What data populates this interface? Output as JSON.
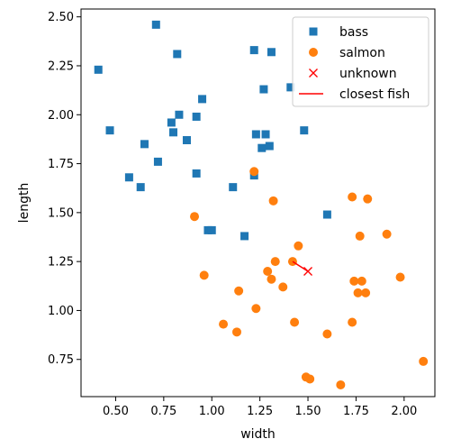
{
  "chart_data": {
    "type": "scatter",
    "xlabel": "width",
    "ylabel": "length",
    "xlim": [
      0.32,
      2.16
    ],
    "ylim": [
      0.56,
      2.54
    ],
    "x_ticks": [
      {
        "value": 0.5,
        "label": "0.50"
      },
      {
        "value": 0.75,
        "label": "0.75"
      },
      {
        "value": 1.0,
        "label": "1.00"
      },
      {
        "value": 1.25,
        "label": "1.25"
      },
      {
        "value": 1.5,
        "label": "1.50"
      },
      {
        "value": 1.75,
        "label": "1.75"
      },
      {
        "value": 2.0,
        "label": "2.00"
      }
    ],
    "y_ticks": [
      {
        "value": 0.75,
        "label": "0.75"
      },
      {
        "value": 1.0,
        "label": "1.00"
      },
      {
        "value": 1.25,
        "label": "1.25"
      },
      {
        "value": 1.5,
        "label": "1.50"
      },
      {
        "value": 1.75,
        "label": "1.75"
      },
      {
        "value": 2.0,
        "label": "2.00"
      },
      {
        "value": 2.25,
        "label": "2.25"
      },
      {
        "value": 2.5,
        "label": "2.50"
      }
    ],
    "grid": false,
    "legend_position": "top-right",
    "series": [
      {
        "name": "bass",
        "marker": "square",
        "color": "#1f77b4",
        "points": [
          [
            0.41,
            2.23
          ],
          [
            0.71,
            2.46
          ],
          [
            0.82,
            2.31
          ],
          [
            1.22,
            2.33
          ],
          [
            1.31,
            2.32
          ],
          [
            1.27,
            2.13
          ],
          [
            1.41,
            2.14
          ],
          [
            0.47,
            1.92
          ],
          [
            0.79,
            1.96
          ],
          [
            0.83,
            2.0
          ],
          [
            0.8,
            1.91
          ],
          [
            0.92,
            1.99
          ],
          [
            0.95,
            2.08
          ],
          [
            0.65,
            1.85
          ],
          [
            0.87,
            1.87
          ],
          [
            1.23,
            1.9
          ],
          [
            1.28,
            1.9
          ],
          [
            1.26,
            1.83
          ],
          [
            1.3,
            1.84
          ],
          [
            1.48,
            1.92
          ],
          [
            0.72,
            1.76
          ],
          [
            0.57,
            1.68
          ],
          [
            0.63,
            1.63
          ],
          [
            0.92,
            1.7
          ],
          [
            1.11,
            1.63
          ],
          [
            1.22,
            1.69
          ],
          [
            0.98,
            1.41
          ],
          [
            1.0,
            1.41
          ],
          [
            1.17,
            1.38
          ],
          [
            1.6,
            1.49
          ]
        ]
      },
      {
        "name": "salmon",
        "marker": "circle",
        "color": "#ff7f0e",
        "points": [
          [
            1.22,
            1.71
          ],
          [
            1.32,
            1.56
          ],
          [
            0.91,
            1.48
          ],
          [
            1.73,
            1.58
          ],
          [
            1.81,
            1.57
          ],
          [
            1.45,
            1.33
          ],
          [
            1.77,
            1.38
          ],
          [
            1.91,
            1.39
          ],
          [
            0.96,
            1.18
          ],
          [
            1.42,
            1.25
          ],
          [
            1.33,
            1.25
          ],
          [
            1.29,
            1.2
          ],
          [
            1.31,
            1.16
          ],
          [
            1.37,
            1.12
          ],
          [
            1.14,
            1.1
          ],
          [
            1.74,
            1.15
          ],
          [
            1.78,
            1.15
          ],
          [
            1.98,
            1.17
          ],
          [
            1.76,
            1.09
          ],
          [
            1.8,
            1.09
          ],
          [
            1.23,
            1.01
          ],
          [
            1.06,
            0.93
          ],
          [
            1.13,
            0.89
          ],
          [
            1.43,
            0.94
          ],
          [
            1.73,
            0.94
          ],
          [
            1.6,
            0.88
          ],
          [
            1.49,
            0.66
          ],
          [
            1.51,
            0.65
          ],
          [
            1.67,
            0.62
          ],
          [
            2.1,
            0.74
          ]
        ]
      },
      {
        "name": "unknown",
        "marker": "x",
        "color": "#ff0000",
        "points": [
          [
            1.5,
            1.2
          ]
        ]
      },
      {
        "name": "closest fish",
        "marker": "line",
        "color": "#ff0000",
        "points": [
          [
            1.42,
            1.25
          ],
          [
            1.5,
            1.2
          ]
        ]
      }
    ]
  }
}
